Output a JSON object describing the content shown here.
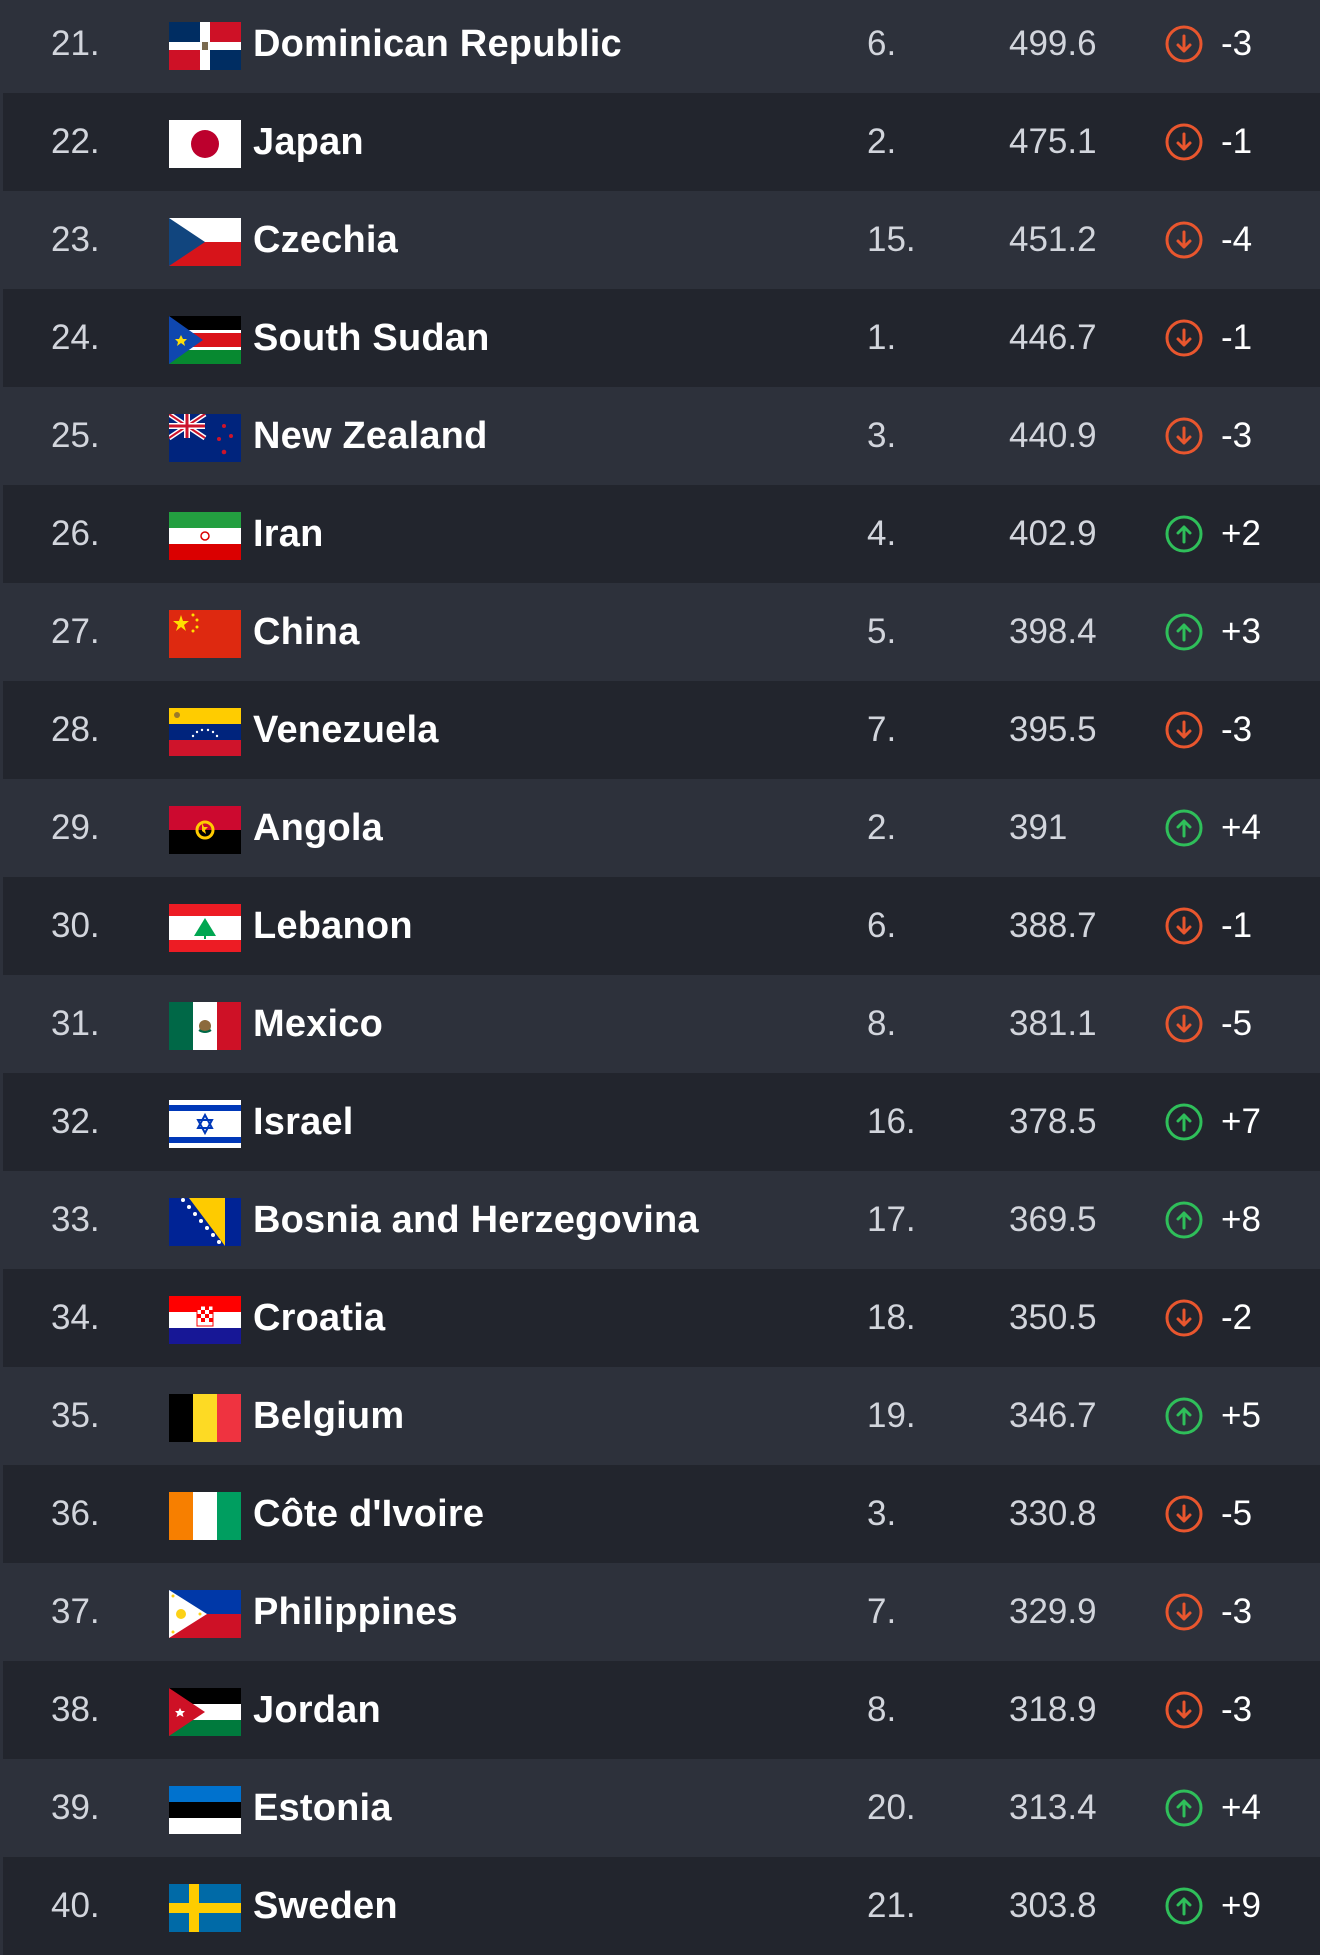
{
  "colors": {
    "down": "#e9562e",
    "up": "#2fbf5a",
    "row_light": "#2d313b",
    "row_dark": "#22252d"
  },
  "rows": [
    {
      "rank": "21.",
      "country": "Dominican Republic",
      "flag": "dominican-republic",
      "group": "6.",
      "points": "499.6",
      "change": "-3",
      "direction": "down"
    },
    {
      "rank": "22.",
      "country": "Japan",
      "flag": "japan",
      "group": "2.",
      "points": "475.1",
      "change": "-1",
      "direction": "down"
    },
    {
      "rank": "23.",
      "country": "Czechia",
      "flag": "czechia",
      "group": "15.",
      "points": "451.2",
      "change": "-4",
      "direction": "down"
    },
    {
      "rank": "24.",
      "country": "South Sudan",
      "flag": "south-sudan",
      "group": "1.",
      "points": "446.7",
      "change": "-1",
      "direction": "down"
    },
    {
      "rank": "25.",
      "country": "New Zealand",
      "flag": "new-zealand",
      "group": "3.",
      "points": "440.9",
      "change": "-3",
      "direction": "down"
    },
    {
      "rank": "26.",
      "country": "Iran",
      "flag": "iran",
      "group": "4.",
      "points": "402.9",
      "change": "+2",
      "direction": "up"
    },
    {
      "rank": "27.",
      "country": "China",
      "flag": "china",
      "group": "5.",
      "points": "398.4",
      "change": "+3",
      "direction": "up"
    },
    {
      "rank": "28.",
      "country": "Venezuela",
      "flag": "venezuela",
      "group": "7.",
      "points": "395.5",
      "change": "-3",
      "direction": "down"
    },
    {
      "rank": "29.",
      "country": "Angola",
      "flag": "angola",
      "group": "2.",
      "points": "391",
      "change": "+4",
      "direction": "up"
    },
    {
      "rank": "30.",
      "country": "Lebanon",
      "flag": "lebanon",
      "group": "6.",
      "points": "388.7",
      "change": "-1",
      "direction": "down"
    },
    {
      "rank": "31.",
      "country": "Mexico",
      "flag": "mexico",
      "group": "8.",
      "points": "381.1",
      "change": "-5",
      "direction": "down"
    },
    {
      "rank": "32.",
      "country": "Israel",
      "flag": "israel",
      "group": "16.",
      "points": "378.5",
      "change": "+7",
      "direction": "up"
    },
    {
      "rank": "33.",
      "country": "Bosnia and Herzegovina",
      "flag": "bosnia",
      "group": "17.",
      "points": "369.5",
      "change": "+8",
      "direction": "up"
    },
    {
      "rank": "34.",
      "country": "Croatia",
      "flag": "croatia",
      "group": "18.",
      "points": "350.5",
      "change": "-2",
      "direction": "down"
    },
    {
      "rank": "35.",
      "country": "Belgium",
      "flag": "belgium",
      "group": "19.",
      "points": "346.7",
      "change": "+5",
      "direction": "up"
    },
    {
      "rank": "36.",
      "country": "Côte d'Ivoire",
      "flag": "cote-divoire",
      "group": "3.",
      "points": "330.8",
      "change": "-5",
      "direction": "down"
    },
    {
      "rank": "37.",
      "country": "Philippines",
      "flag": "philippines",
      "group": "7.",
      "points": "329.9",
      "change": "-3",
      "direction": "down"
    },
    {
      "rank": "38.",
      "country": "Jordan",
      "flag": "jordan",
      "group": "8.",
      "points": "318.9",
      "change": "-3",
      "direction": "down"
    },
    {
      "rank": "39.",
      "country": "Estonia",
      "flag": "estonia",
      "group": "20.",
      "points": "313.4",
      "change": "+4",
      "direction": "up"
    },
    {
      "rank": "40.",
      "country": "Sweden",
      "flag": "sweden",
      "group": "21.",
      "points": "303.8",
      "change": "+9",
      "direction": "up"
    }
  ]
}
